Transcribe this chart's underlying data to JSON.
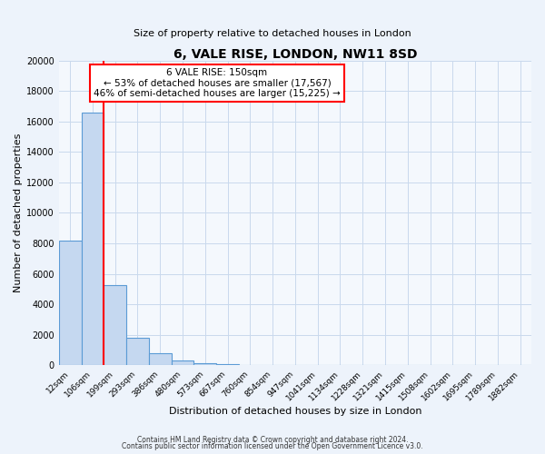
{
  "title": "6, VALE RISE, LONDON, NW11 8SD",
  "subtitle": "Size of property relative to detached houses in London",
  "xlabel": "Distribution of detached houses by size in London",
  "ylabel": "Number of detached properties",
  "categories": [
    "12sqm",
    "106sqm",
    "199sqm",
    "293sqm",
    "386sqm",
    "480sqm",
    "573sqm",
    "667sqm",
    "760sqm",
    "854sqm",
    "947sqm",
    "1041sqm",
    "1134sqm",
    "1228sqm",
    "1321sqm",
    "1415sqm",
    "1508sqm",
    "1602sqm",
    "1695sqm",
    "1789sqm",
    "1882sqm"
  ],
  "values": [
    8200,
    16550,
    5250,
    1800,
    780,
    300,
    150,
    100,
    0,
    0,
    0,
    0,
    0,
    0,
    0,
    0,
    0,
    0,
    0,
    0,
    0
  ],
  "bar_color": "#c5d8f0",
  "bar_edge_color": "#5b9bd5",
  "annotation_title": "6 VALE RISE: 150sqm",
  "annotation_line1": "← 53% of detached houses are smaller (17,567)",
  "annotation_line2": "46% of semi-detached houses are larger (15,225) →",
  "ylim": [
    0,
    20000
  ],
  "yticks": [
    0,
    2000,
    4000,
    6000,
    8000,
    10000,
    12000,
    14000,
    16000,
    18000,
    20000
  ],
  "footer1": "Contains HM Land Registry data © Crown copyright and database right 2024.",
  "footer2": "Contains public sector information licensed under the Open Government Licence v3.0.",
  "bg_color": "#edf3fb",
  "plot_bg_color": "#f4f8fd",
  "grid_color": "#c9d9ed"
}
